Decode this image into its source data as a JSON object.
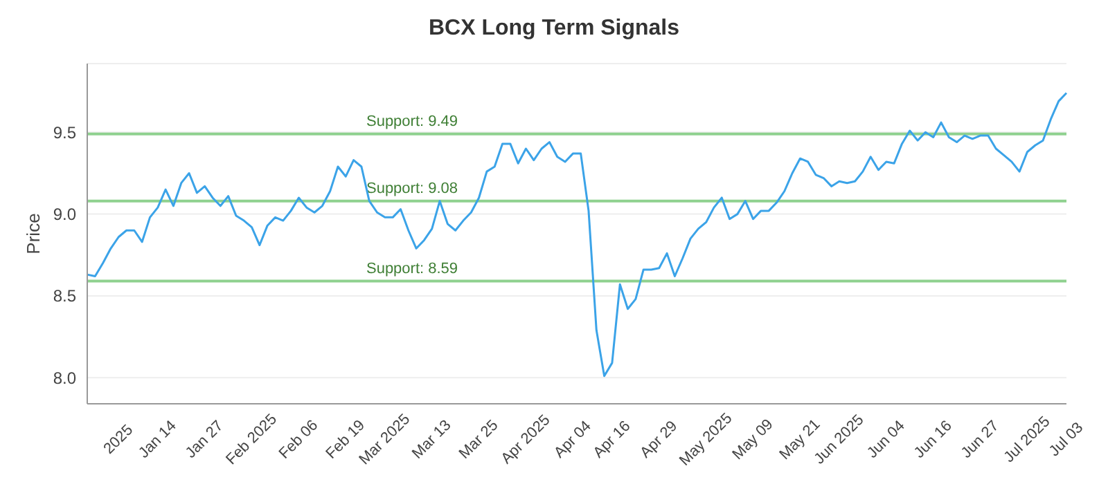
{
  "chart_data": {
    "type": "line",
    "title": "BCX Long Term Signals",
    "ylabel": "Price",
    "categories": [
      null,
      null,
      null,
      null,
      "2025",
      null,
      null,
      null,
      null,
      "Jan 14",
      null,
      null,
      null,
      null,
      null,
      "Jan 27",
      null,
      null,
      null,
      null,
      null,
      "Feb 2025",
      null,
      null,
      null,
      null,
      null,
      "Feb 06",
      null,
      null,
      null,
      null,
      null,
      "Feb 19",
      null,
      null,
      null,
      null,
      "Mar 2025",
      null,
      null,
      null,
      null,
      null,
      "Mar 13",
      null,
      null,
      null,
      null,
      null,
      "Mar 25",
      null,
      null,
      null,
      null,
      null,
      "Apr 2025",
      null,
      null,
      null,
      null,
      null,
      "Apr 04",
      null,
      null,
      null,
      null,
      "Apr 16",
      null,
      null,
      null,
      null,
      null,
      "Apr 29",
      null,
      null,
      null,
      null,
      null,
      "May 2025",
      null,
      null,
      null,
      null,
      null,
      "May 09",
      null,
      null,
      null,
      null,
      null,
      "May 21",
      null,
      null,
      null,
      null,
      "Jun 2025",
      null,
      null,
      null,
      null,
      null,
      "Jun 04",
      null,
      null,
      null,
      null,
      null,
      "Jun 16",
      null,
      null,
      null,
      null,
      null,
      "Jun 27",
      null,
      null,
      null,
      null,
      null,
      "Jul 2025",
      null,
      null,
      null,
      null,
      "Jul 03"
    ],
    "series": [
      {
        "color": "#3ba3e8",
        "values": [
          8.63,
          8.62,
          8.7,
          8.79,
          8.86,
          8.9,
          8.9,
          8.83,
          8.98,
          9.04,
          9.15,
          9.05,
          9.19,
          9.25,
          9.13,
          9.17,
          9.1,
          9.05,
          9.11,
          8.99,
          8.96,
          8.92,
          8.81,
          8.93,
          8.98,
          8.96,
          9.02,
          9.1,
          9.04,
          9.01,
          9.05,
          9.14,
          9.29,
          9.23,
          9.33,
          9.29,
          9.08,
          9.01,
          8.98,
          8.98,
          9.03,
          8.9,
          8.79,
          8.84,
          8.91,
          9.08,
          8.94,
          8.9,
          8.96,
          9.01,
          9.1,
          9.26,
          9.29,
          9.43,
          9.43,
          9.31,
          9.4,
          9.33,
          9.4,
          9.44,
          9.35,
          9.32,
          9.37,
          9.37,
          9.02,
          8.29,
          8.01,
          8.09,
          8.57,
          8.42,
          8.48,
          8.66,
          8.66,
          8.67,
          8.76,
          8.62,
          8.73,
          8.85,
          8.91,
          8.95,
          9.04,
          9.1,
          8.97,
          9.0,
          9.08,
          8.97,
          9.02,
          9.02,
          9.07,
          9.14,
          9.25,
          9.34,
          9.32,
          9.24,
          9.22,
          9.17,
          9.2,
          9.19,
          9.2,
          9.26,
          9.35,
          9.27,
          9.32,
          9.31,
          9.43,
          9.51,
          9.45,
          9.5,
          9.47,
          9.56,
          9.47,
          9.44,
          9.48,
          9.46,
          9.48,
          9.48,
          9.4,
          9.36,
          9.32,
          9.26,
          9.38,
          9.42,
          9.45,
          9.58,
          9.69,
          9.74
        ]
      }
    ],
    "ylim": [
      7.84,
      9.92
    ],
    "yticks": [
      {
        "value": 8,
        "label": "8.0"
      },
      {
        "value": 8.5,
        "label": "8.5"
      },
      {
        "value": 9,
        "label": "9.0"
      },
      {
        "value": 9.5,
        "label": "9.5"
      }
    ],
    "grid": "y",
    "marker": "none",
    "line_style": "solid",
    "ref_lines": [
      {
        "axis": "y",
        "value": 9.49,
        "label": "Support: 9.49",
        "color": "#8fd18f"
      },
      {
        "axis": "y",
        "value": 9.08,
        "label": "Support: 9.08",
        "color": "#8fd18f"
      },
      {
        "axis": "y",
        "value": 8.59,
        "label": "Support: 8.59",
        "color": "#8fd18f"
      }
    ]
  }
}
